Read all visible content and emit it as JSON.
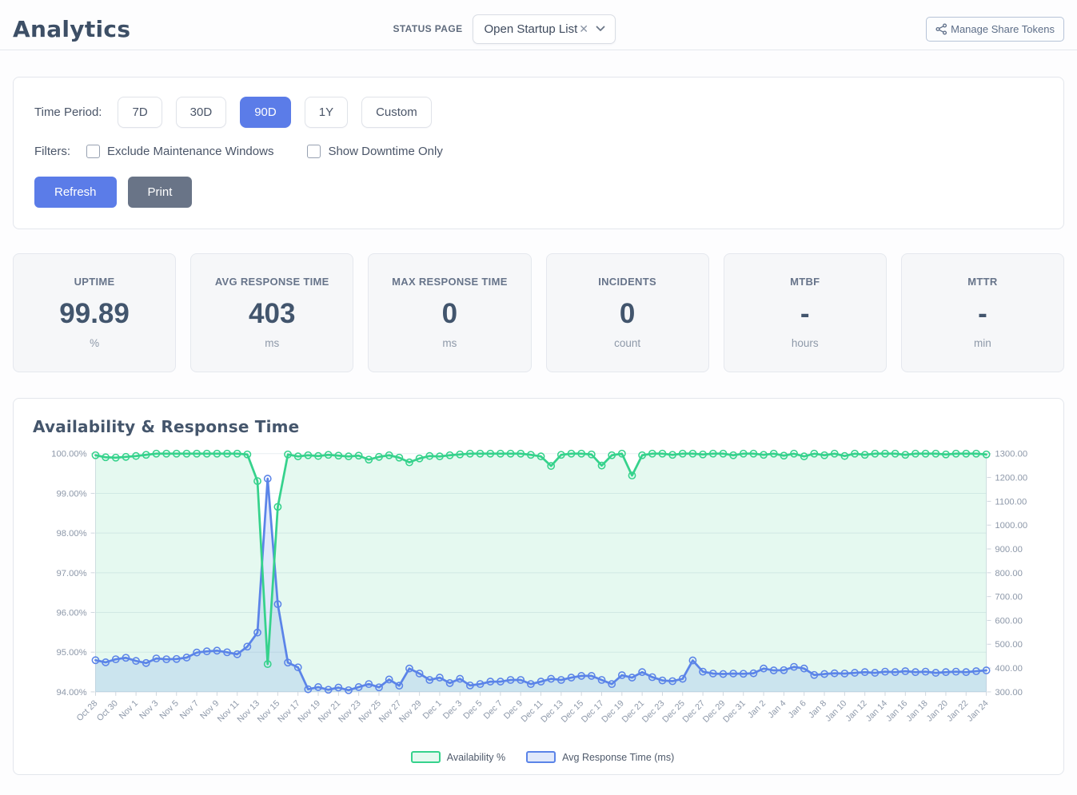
{
  "header": {
    "title": "Analytics",
    "status_page_label": "STATUS PAGE",
    "status_page_value": "Open Startup List",
    "clear_icon": "✕",
    "manage_share_tokens_label": "Manage Share Tokens"
  },
  "filters_panel": {
    "time_period_label": "Time Period:",
    "time_periods": [
      {
        "label": "7D",
        "active": false
      },
      {
        "label": "30D",
        "active": false
      },
      {
        "label": "90D",
        "active": true
      },
      {
        "label": "1Y",
        "active": false
      },
      {
        "label": "Custom",
        "active": false
      }
    ],
    "filters_label": "Filters:",
    "checkboxes": [
      {
        "label": "Exclude Maintenance Windows",
        "checked": false
      },
      {
        "label": "Show Downtime Only",
        "checked": false
      }
    ],
    "refresh_label": "Refresh",
    "print_label": "Print"
  },
  "stats": [
    {
      "label": "UPTIME",
      "value": "99.89",
      "unit": "%"
    },
    {
      "label": "AVG RESPONSE TIME",
      "value": "403",
      "unit": "ms"
    },
    {
      "label": "MAX RESPONSE TIME",
      "value": "0",
      "unit": "ms"
    },
    {
      "label": "INCIDENTS",
      "value": "0",
      "unit": "count"
    },
    {
      "label": "MTBF",
      "value": "-",
      "unit": "hours"
    },
    {
      "label": "MTTR",
      "value": "-",
      "unit": "min"
    }
  ],
  "chart": {
    "title": "Availability & Response Time",
    "chart_data": {
      "type": "line",
      "x_tick_labels": [
        "Oct 28",
        "Oct 30",
        "Nov 1",
        "Nov 3",
        "Nov 5",
        "Nov 7",
        "Nov 9",
        "Nov 11",
        "Nov 13",
        "Nov 15",
        "Nov 17",
        "Nov 19",
        "Nov 21",
        "Nov 23",
        "Nov 25",
        "Nov 27",
        "Nov 29",
        "Dec 1",
        "Dec 3",
        "Dec 5",
        "Dec 7",
        "Dec 9",
        "Dec 11",
        "Dec 13",
        "Dec 15",
        "Dec 17",
        "Dec 19",
        "Dec 21",
        "Dec 23",
        "Dec 25",
        "Dec 27",
        "Dec 29",
        "Dec 31",
        "Jan 2",
        "Jan 4",
        "Jan 6",
        "Jan 8",
        "Jan 10",
        "Jan 12",
        "Jan 14",
        "Jan 16",
        "Jan 18",
        "Jan 20",
        "Jan 22",
        "Jan 24"
      ],
      "x_tick_every": 2,
      "left_axis": {
        "min": 94,
        "max": 100,
        "tick_labels": [
          "94.00%",
          "95.00%",
          "96.00%",
          "97.00%",
          "98.00%",
          "99.00%",
          "100.00%"
        ]
      },
      "right_axis": {
        "min": 300,
        "max": 1300,
        "tick_labels": [
          "300.00",
          "400.00",
          "500.00",
          "600.00",
          "700.00",
          "800.00",
          "900.00",
          "1000.00",
          "1100.00",
          "1200.00",
          "1300.00"
        ]
      },
      "grid": true,
      "legend_position": "bottom",
      "series": [
        {
          "name": "Availability %",
          "axis": "left",
          "color": "#36d28c",
          "fill": "rgba(54,210,140,0.13)",
          "values": [
            99.96,
            99.91,
            99.9,
            99.92,
            99.94,
            99.97,
            100,
            100,
            100,
            100,
            100,
            100,
            100,
            100,
            100,
            99.98,
            99.31,
            94.7,
            98.66,
            99.98,
            99.93,
            99.96,
            99.94,
            99.97,
            99.95,
            99.93,
            99.95,
            99.85,
            99.92,
            99.96,
            99.9,
            99.78,
            99.88,
            99.94,
            99.93,
            99.96,
            99.98,
            100,
            100,
            100,
            100,
            100,
            100,
            99.97,
            99.93,
            99.69,
            99.97,
            100,
            100,
            99.98,
            99.7,
            99.96,
            100,
            99.45,
            99.96,
            100,
            100,
            99.97,
            100,
            100,
            99.98,
            100,
            100,
            99.96,
            100,
            100,
            99.97,
            100,
            99.95,
            100,
            99.93,
            100,
            99.96,
            100,
            99.94,
            100,
            99.97,
            100,
            100,
            100,
            99.97,
            100,
            100,
            100,
            99.98,
            100,
            100,
            100,
            99.98
          ]
        },
        {
          "name": "Avg Response Time (ms)",
          "axis": "right",
          "color": "#5b84e8",
          "fill": "rgba(91,132,232,0.18)",
          "values": [
            433,
            424,
            437,
            443,
            430,
            421,
            440,
            437,
            438,
            444,
            465,
            470,
            473,
            466,
            458,
            490,
            549,
            1195,
            668,
            423,
            403,
            311,
            320,
            309,
            318,
            307,
            320,
            333,
            319,
            352,
            326,
            398,
            377,
            350,
            360,
            337,
            355,
            327,
            333,
            343,
            343,
            350,
            350,
            333,
            343,
            355,
            350,
            360,
            367,
            367,
            350,
            333,
            370,
            360,
            383,
            362,
            348,
            345,
            355,
            432,
            385,
            377,
            375,
            377,
            376,
            378,
            398,
            390,
            391,
            405,
            398,
            371,
            375,
            378,
            377,
            380,
            383,
            380,
            385,
            383,
            387,
            383,
            385,
            380,
            383,
            385,
            383,
            387,
            390
          ]
        }
      ]
    }
  },
  "colors": {
    "accent_blue": "#5b7ce8",
    "slate_button": "#697487",
    "availability_green": "#36d28c",
    "response_blue": "#5b84e8",
    "axis_text": "#8d98a9",
    "grid_line": "#e9edf2",
    "axis_line": "#d8dee6"
  }
}
